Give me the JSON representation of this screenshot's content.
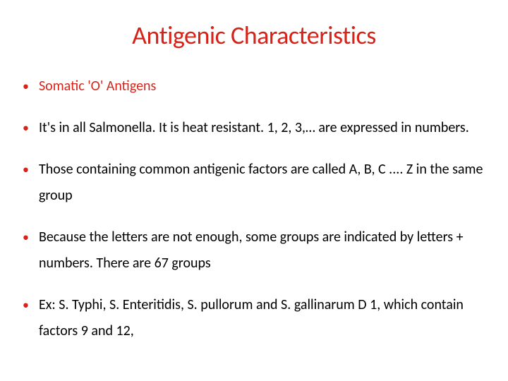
{
  "title": {
    "text": "Antigenic Characteristics",
    "color": "#d6231a",
    "fontsize": 36
  },
  "bullet": {
    "marker": "•",
    "color": "#d6231a",
    "fontsize": 18
  },
  "items": [
    {
      "text": "Somatic 'O' Antigens",
      "color": "#d6231a",
      "fontsize": 20
    },
    {
      "text": "It's in all Salmonella. It is heat resistant. 1, 2, 3,… are expressed in numbers.",
      "color": "#000000",
      "fontsize": 20
    },
    {
      "text": "Those containing common antigenic factors are called A, B, C .... Z in the same group",
      "color": "#000000",
      "fontsize": 20
    },
    {
      "text": "Because the letters are not enough, some groups are indicated by letters + numbers. There are 67 groups",
      "color": "#000000",
      "fontsize": 20
    },
    {
      "text": "Ex: S. Typhi, S. Enteritidis, S. pullorum and S. gallinarum D 1, which contain factors 9 and 12,",
      "color": "#000000",
      "fontsize": 20
    }
  ]
}
